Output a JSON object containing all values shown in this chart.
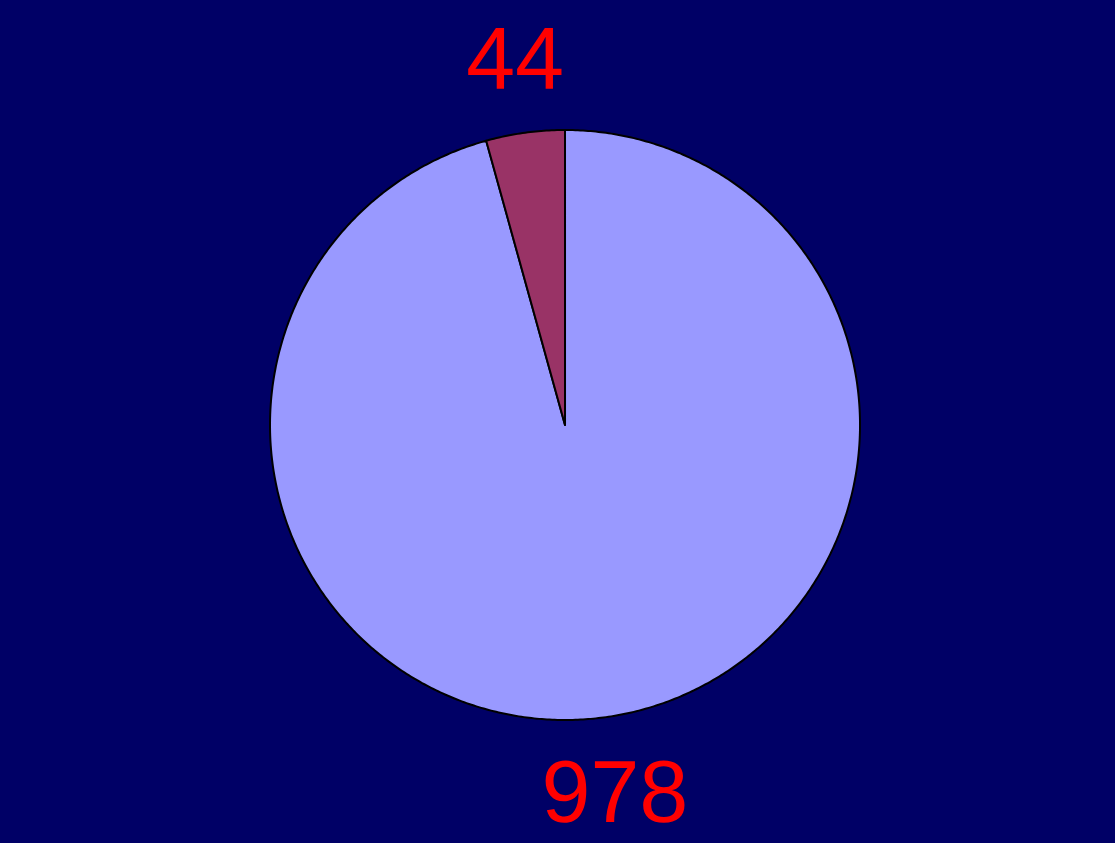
{
  "chart_data": {
    "type": "pie",
    "categories": [
      null,
      null
    ],
    "values": [
      978,
      44
    ],
    "colors": [
      "#9999ff",
      "#993366"
    ],
    "data_labels": true
  }
}
